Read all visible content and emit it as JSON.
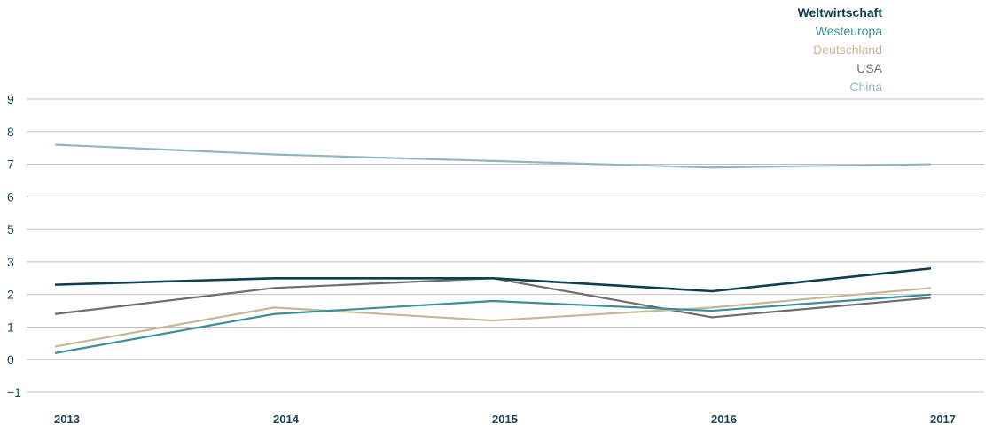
{
  "colors": {
    "axis_text": "#1c4759",
    "gridline": "#c2c2c2",
    "background": "#ffffff"
  },
  "chart_data": {
    "type": "line",
    "x": [
      "2013",
      "2014",
      "2015",
      "2016",
      "2017"
    ],
    "yticks": [
      9,
      8,
      7,
      6,
      5,
      3,
      2,
      1,
      0,
      -1
    ],
    "ytick_labels": [
      "9",
      "8",
      "7",
      "6",
      "5",
      "3",
      "2",
      "1",
      "0",
      "−1"
    ],
    "ylim": [
      -1,
      9
    ],
    "grid": true,
    "legend_position": "top-right",
    "series": [
      {
        "name": "Weltwirtschaft",
        "color": "#0e3e52",
        "values": [
          2.3,
          2.5,
          2.5,
          2.1,
          2.8
        ]
      },
      {
        "name": "Westeuropa",
        "color": "#3b8f99",
        "values": [
          0.2,
          1.4,
          1.8,
          1.5,
          2.0
        ]
      },
      {
        "name": "Deutschland",
        "color": "#c8b797",
        "values": [
          0.4,
          1.6,
          1.2,
          1.6,
          2.2
        ]
      },
      {
        "name": "USA",
        "color": "#6e6e6e",
        "values": [
          1.4,
          2.2,
          2.5,
          1.3,
          1.9
        ]
      },
      {
        "name": "China",
        "color": "#8fb7c1",
        "values": [
          7.6,
          7.3,
          7.1,
          6.9,
          7.0
        ]
      }
    ]
  }
}
